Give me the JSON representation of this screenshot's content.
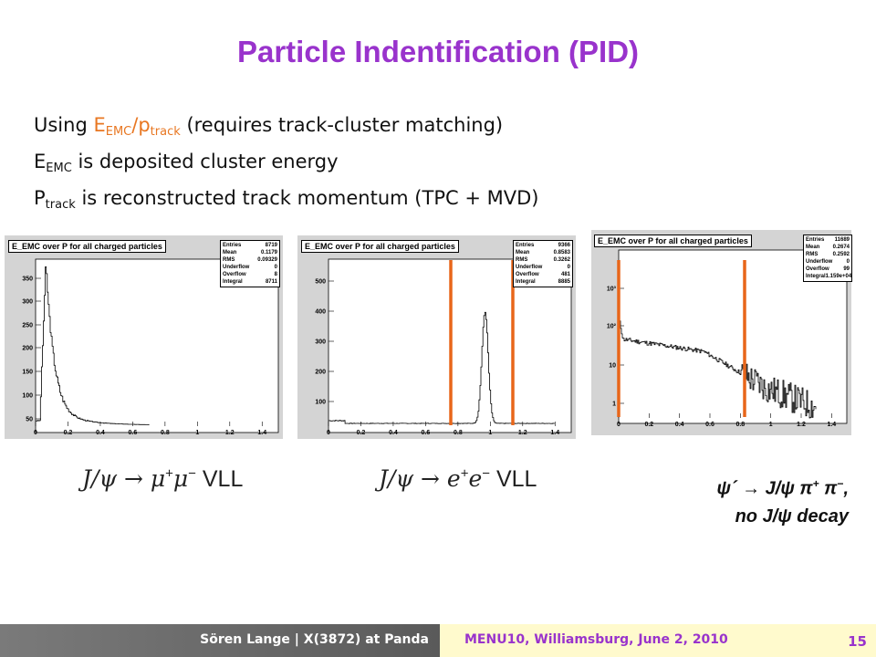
{
  "title": "Particle Indentification (PID)",
  "lines": {
    "l1_pre": "Using ",
    "l1_E": "E",
    "l1_EMC": "EMC",
    "l1_slash": "/p",
    "l1_track": "track",
    "l1_post": " (requires track-cluster matching)",
    "l2_E": "E",
    "l2_EMC": "EMC",
    "l2_post": " is deposited cluster energy",
    "l3_P": "P",
    "l3_track": "track",
    "l3_post": " is reconstructed track momentum (TPC + MVD)"
  },
  "histograms": [
    {
      "title": "E_EMC over P for all charged particles",
      "stats": [
        [
          "Entries",
          "8719"
        ],
        [
          "Mean",
          "0.1179"
        ],
        [
          "RMS",
          "0.09329"
        ],
        [
          "Underflow",
          "0"
        ],
        [
          "Overflow",
          "8"
        ],
        [
          "Integral",
          "8711"
        ]
      ],
      "yticks": [
        "50",
        "100",
        "150",
        "200",
        "250",
        "300",
        "350"
      ],
      "xticks": [
        "0",
        "0.2",
        "0.4",
        "0.6",
        "0.8",
        "1",
        "1.2",
        "1.4"
      ]
    },
    {
      "title": "E_EMC over P for all charged particles",
      "stats": [
        [
          "Entries",
          "9366"
        ],
        [
          "Mean",
          "0.8583"
        ],
        [
          "RMS",
          "0.3262"
        ],
        [
          "Underflow",
          "0"
        ],
        [
          "Overflow",
          "481"
        ],
        [
          "Integral",
          "8885"
        ]
      ],
      "yticks": [
        "100",
        "200",
        "300",
        "400",
        "500"
      ],
      "xticks": [
        "0",
        "0.2",
        "0.4",
        "0.6",
        "0.8",
        "1",
        "1.2",
        "1.4"
      ]
    },
    {
      "title": "E_EMC over P for all charged particles",
      "stats": [
        [
          "Entries",
          "11689"
        ],
        [
          "Mean",
          "0.2674"
        ],
        [
          "RMS",
          "0.2592"
        ],
        [
          "Underflow",
          "0"
        ],
        [
          "Overflow",
          "99"
        ],
        [
          "Integral",
          "1.159e+04"
        ]
      ],
      "yticks": [
        "1",
        "10",
        "10²",
        "10³"
      ],
      "xticks": [
        "0",
        "0.2",
        "0.4",
        "0.6",
        "0.8",
        "1",
        "1.2",
        "1.4"
      ]
    }
  ],
  "formulas": {
    "f1_lhs": "J/ψ → μ",
    "f1_sup1": "+",
    "f1_mid": "μ",
    "f1_sup2": "−",
    "f1_tail": " VLL",
    "f2_lhs": "J/ψ → e",
    "f2_sup1": "+",
    "f2_mid": "e",
    "f2_sup2": "−",
    "f2_tail": " VLL"
  },
  "decay": {
    "line1_a": "ψ´ → J/ψ π",
    "line1_sup1": "+",
    "line1_b": " π",
    "line1_sup2": "−",
    "line1_c": ",",
    "line2": "no J/ψ decay"
  },
  "footer": {
    "author": "Sören Lange | X(3872) at Panda",
    "conference": "MENU10, Williamsburg, June 2, 2010",
    "page": "15"
  },
  "colors": {
    "title": "#9933cc",
    "accent_orange": "#e87722",
    "cut_lines": "#e8661a"
  }
}
